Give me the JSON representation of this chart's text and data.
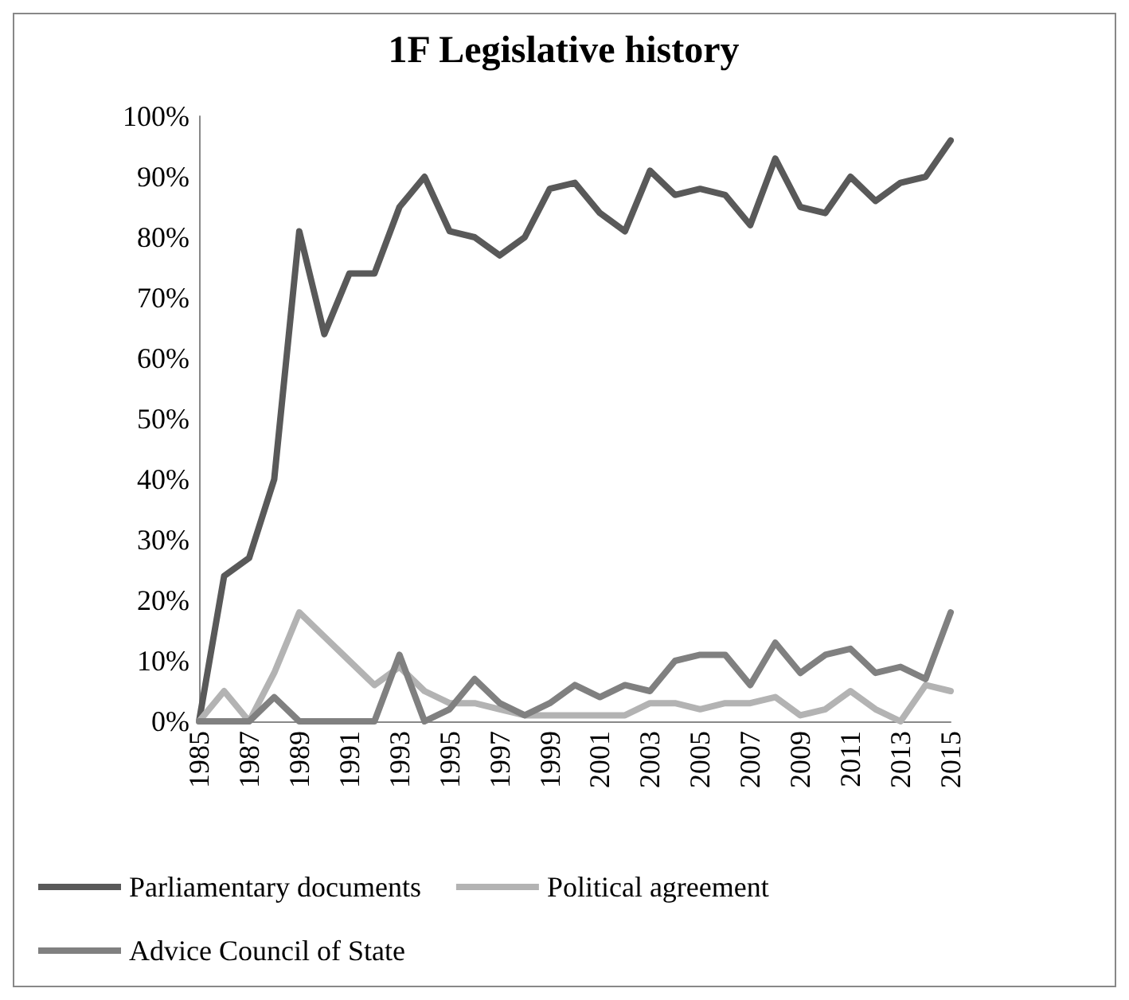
{
  "chart_data": {
    "type": "line",
    "title": "1F Legislative history",
    "categories": [
      "1985",
      null,
      "1987",
      null,
      "1989",
      null,
      "1991",
      null,
      "1993",
      null,
      "1995",
      null,
      "1997",
      null,
      "1999",
      null,
      "2001",
      null,
      "2003",
      null,
      "2005",
      null,
      "2007",
      null,
      "2009",
      null,
      "2011",
      null,
      "2013",
      null,
      "2015"
    ],
    "series": [
      {
        "name": "Parliamentary documents",
        "color": "#595959",
        "values": [
          0,
          24,
          27,
          40,
          81,
          64,
          74,
          74,
          85,
          90,
          81,
          80,
          77,
          80,
          88,
          89,
          84,
          81,
          91,
          87,
          88,
          87,
          82,
          93,
          85,
          84,
          90,
          86,
          89,
          90,
          96
        ]
      },
      {
        "name": "Political agreement",
        "color": "#b3b3b3",
        "values": [
          0,
          5,
          0,
          8,
          18,
          14,
          10,
          6,
          9,
          5,
          3,
          3,
          2,
          1,
          1,
          1,
          1,
          1,
          3,
          3,
          2,
          3,
          3,
          4,
          1,
          2,
          5,
          2,
          0,
          6,
          5
        ]
      },
      {
        "name": "Advice Council of State",
        "color": "#808080",
        "values": [
          0,
          0,
          0,
          4,
          0,
          0,
          0,
          0,
          11,
          0,
          2,
          7,
          3,
          1,
          3,
          6,
          4,
          6,
          5,
          10,
          11,
          11,
          6,
          13,
          8,
          11,
          12,
          8,
          9,
          7,
          18
        ]
      }
    ],
    "ylim": [
      0,
      100
    ],
    "yticks": [
      {
        "value": 0,
        "label": "0%"
      },
      {
        "value": 10,
        "label": "10%"
      },
      {
        "value": 20,
        "label": "20%"
      },
      {
        "value": 30,
        "label": "30%"
      },
      {
        "value": 40,
        "label": "40%"
      },
      {
        "value": 50,
        "label": "50%"
      },
      {
        "value": 60,
        "label": "60%"
      },
      {
        "value": 70,
        "label": "70%"
      },
      {
        "value": 80,
        "label": "80%"
      },
      {
        "value": 90,
        "label": "90%"
      },
      {
        "value": 100,
        "label": "100%"
      }
    ],
    "grid": false,
    "legend": "bottom",
    "marker": "none",
    "line_style": "solid"
  }
}
